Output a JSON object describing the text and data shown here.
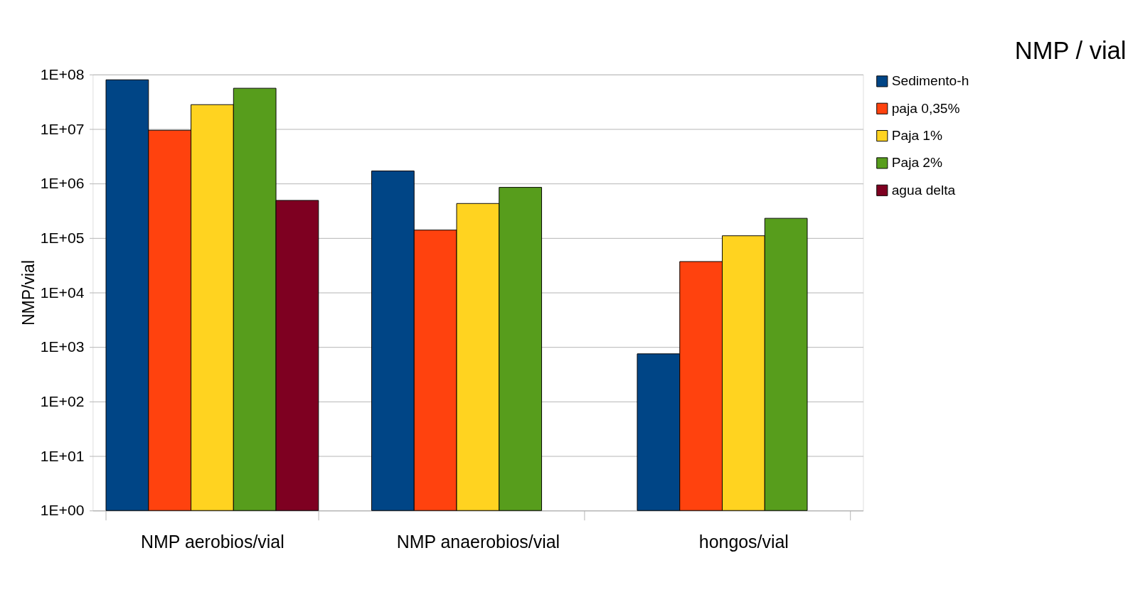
{
  "chart_data": {
    "type": "bar",
    "title": "NMP / vial",
    "ylabel": "NMP/vial",
    "log": true,
    "grid": "y",
    "legend": "right",
    "categories": [
      "NMP aerobios/vial",
      "NMP anaerobios/vial",
      "hongos/vial"
    ],
    "series": [
      {
        "name": "Sedimento-h",
        "color": "#004586",
        "values": [
          80000000,
          1700000,
          750
        ]
      },
      {
        "name": "paja 0,35%",
        "color": "#ff420e",
        "values": [
          9500000,
          140000,
          37000
        ]
      },
      {
        "name": "Paja 1%",
        "color": "#ffd320",
        "values": [
          28000000,
          430000,
          110000
        ]
      },
      {
        "name": "Paja 2%",
        "color": "#579d1c",
        "values": [
          56000000,
          850000,
          230000
        ]
      },
      {
        "name": "agua delta",
        "color": "#7e0021",
        "values": [
          490000,
          null,
          null
        ]
      }
    ],
    "ylim": [
      1,
      100000000
    ],
    "yticks": [
      {
        "value": 1,
        "label": "1E+00"
      },
      {
        "value": 10,
        "label": "1E+01"
      },
      {
        "value": 100,
        "label": "1E+02"
      },
      {
        "value": 1000,
        "label": "1E+03"
      },
      {
        "value": 10000,
        "label": "1E+04"
      },
      {
        "value": 100000,
        "label": "1E+05"
      },
      {
        "value": 1000000,
        "label": "1E+06"
      },
      {
        "value": 10000000,
        "label": "1E+07"
      },
      {
        "value": 100000000,
        "label": "1E+08"
      }
    ]
  }
}
